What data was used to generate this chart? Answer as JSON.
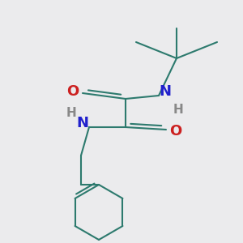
{
  "background_color": "#ebebed",
  "bond_color": "#2d7a6e",
  "N_color": "#2020cc",
  "O_color": "#cc2020",
  "H_color": "#888888",
  "line_width": 1.5,
  "figsize": [
    3.0,
    3.0
  ],
  "dpi": 100,
  "xlim": [
    0,
    300
  ],
  "ylim": [
    0,
    300
  ]
}
